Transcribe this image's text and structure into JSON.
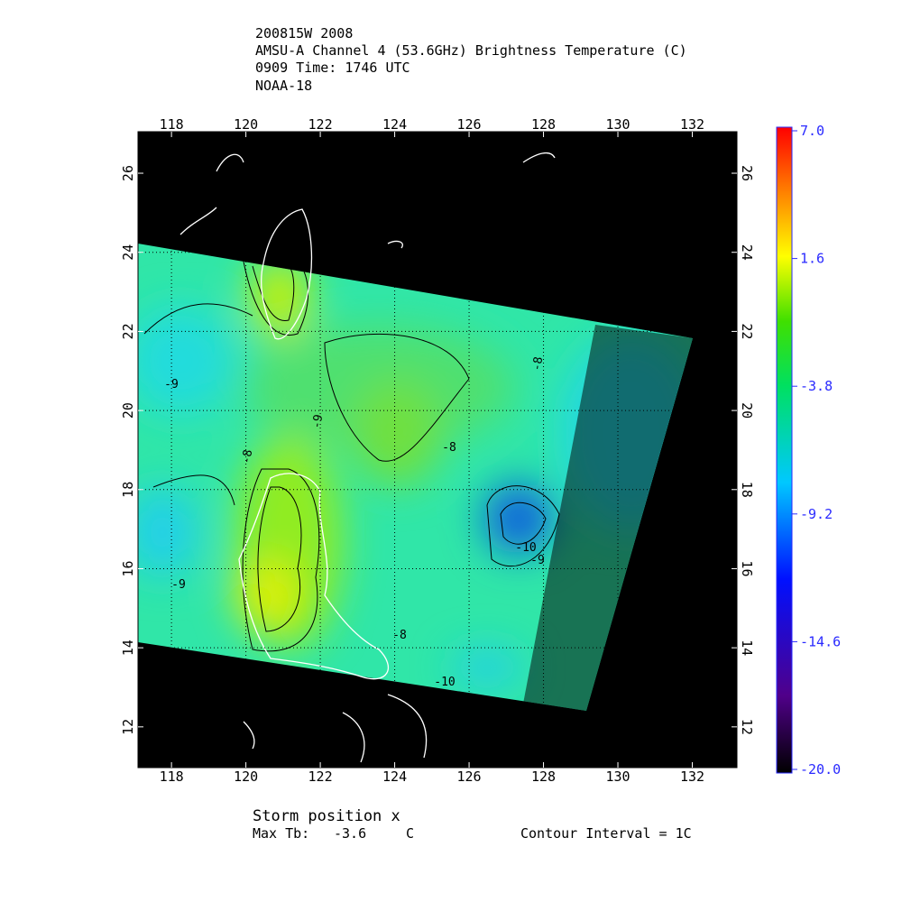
{
  "header": {
    "lines": [
      "200815W 2008",
      "AMSU-A Channel 4 (53.6GHz) Brightness Temperature (C)",
      "0909 Time: 1746 UTC",
      "NOAA-18"
    ]
  },
  "map": {
    "xlim": [
      117.1,
      133.2
    ],
    "ylim": [
      10.97,
      27.05
    ],
    "xticks": [
      118,
      120,
      122,
      124,
      126,
      128,
      130,
      132
    ],
    "yticks": [
      12,
      14,
      16,
      18,
      20,
      22,
      24,
      26
    ],
    "contour_labels": [
      "-9",
      "-8",
      "-9",
      "-8",
      "-8",
      "-10",
      "-9",
      "-8",
      "-10",
      "-9"
    ]
  },
  "colorbar": {
    "lim": [
      -20,
      7
    ],
    "ticks": [
      {
        "value": 7,
        "label": "7.0"
      },
      1.6,
      -3.8,
      -9.2,
      -14.6,
      {
        "value": -20,
        "label": "-20.0"
      }
    ]
  },
  "footer": {
    "storm": "Storm position x",
    "max_label": "Max Tb:",
    "max_value": "-3.6",
    "max_unit": "C",
    "interval": "Contour Interval = 1C"
  }
}
